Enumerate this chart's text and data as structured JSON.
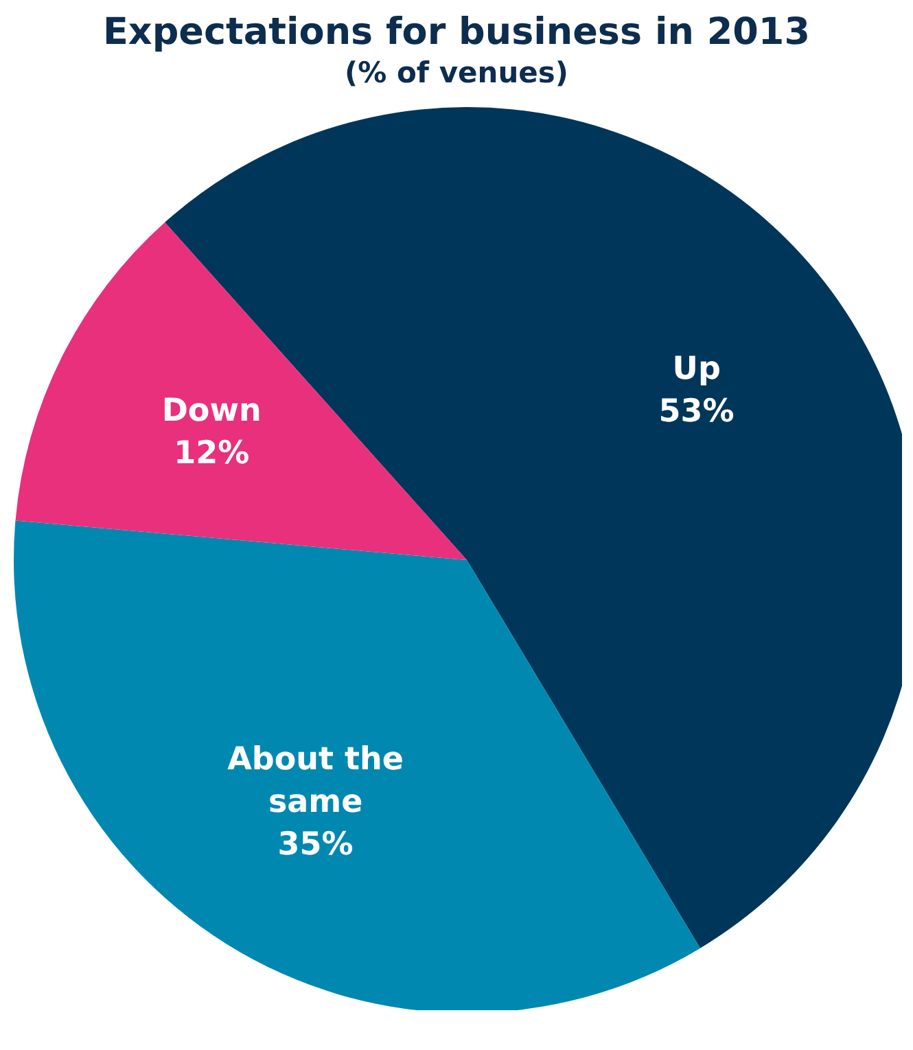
{
  "chart_data": {
    "type": "pie",
    "title": "Expectations for business in 2013",
    "subtitle": "(% of venues)",
    "categories": [
      "Up",
      "About the same",
      "Down"
    ],
    "values": [
      53,
      35,
      12
    ],
    "colors": [
      "#00365a",
      "#0088b0",
      "#e8307c"
    ],
    "value_labels": [
      "53%",
      "35%",
      "12%"
    ]
  }
}
